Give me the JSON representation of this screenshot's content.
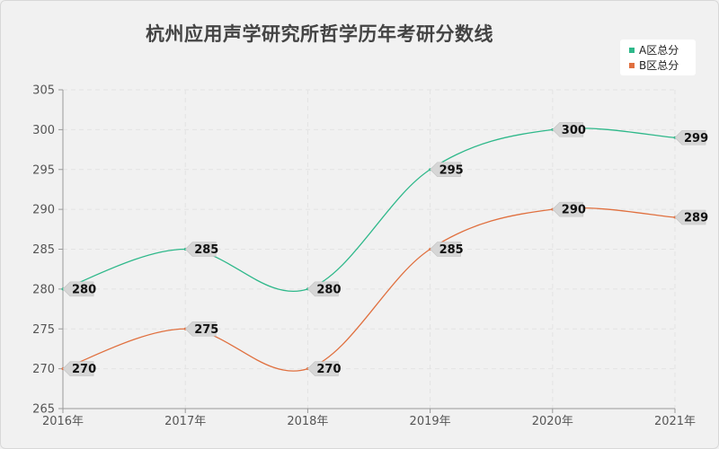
{
  "title": "杭州应用声学研究所哲学历年考研分数线",
  "chart_data": {
    "type": "line",
    "categories": [
      "2016年",
      "2017年",
      "2018年",
      "2019年",
      "2020年",
      "2021年"
    ],
    "series": [
      {
        "name": "A区总分",
        "values": [
          280,
          285,
          280,
          295,
          300,
          299
        ],
        "color": "#2eb88a"
      },
      {
        "name": "B区总分",
        "values": [
          270,
          275,
          270,
          285,
          290,
          289
        ],
        "color": "#e0703f"
      }
    ],
    "yticks": [
      265,
      270,
      275,
      280,
      285,
      290,
      295,
      300,
      305
    ],
    "ylim": [
      265,
      305
    ],
    "grid": true,
    "legend_position": "top-right"
  }
}
